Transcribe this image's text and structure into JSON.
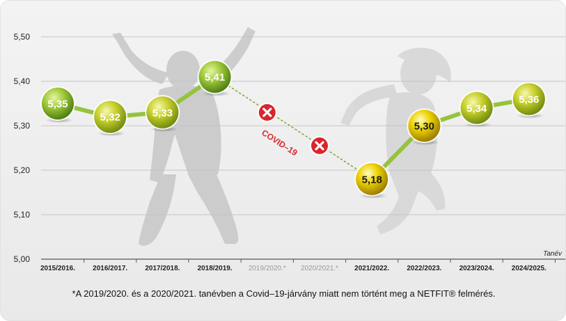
{
  "chart_data": {
    "type": "line",
    "ylim": [
      5.0,
      5.5
    ],
    "yticks": [
      "5,00",
      "5,10",
      "5,20",
      "5,30",
      "5,40",
      "5,50"
    ],
    "ytick_values": [
      5.0,
      5.1,
      5.2,
      5.3,
      5.4,
      5.5
    ],
    "categories": [
      "2015/2016.",
      "2016/2017.",
      "2017/2018.",
      "2018/2019.",
      "2019/2020.*",
      "2020/2021.*",
      "2021/2022.",
      "2022/2023.",
      "2023/2024.",
      "2024/2025."
    ],
    "values": [
      5.35,
      5.32,
      5.33,
      5.41,
      null,
      null,
      5.18,
      5.3,
      5.34,
      5.36
    ],
    "value_labels": [
      "5,35",
      "5,32",
      "5,33",
      "5,41",
      "",
      "",
      "5,18",
      "5,30",
      "5,34",
      "5,36"
    ],
    "missing_markers": [
      {
        "category": "2019/2020.*",
        "value": 5.33
      },
      {
        "category": "2020/2021.*",
        "value": 5.255
      }
    ],
    "xlabel": "Tanév",
    "annotation": "COVID–19",
    "grid": true,
    "colors": {
      "line": "#95c33c",
      "dotted": "#7fa83a",
      "green_ball": "#6ea12b",
      "yellow_ball": "#e2c400",
      "cross": "#d9262e"
    }
  },
  "footnote": "*A 2019/2020. és a 2020/2021. tanévben a Covid–19-járvány miatt nem történt meg a NETFIT® felmérés."
}
